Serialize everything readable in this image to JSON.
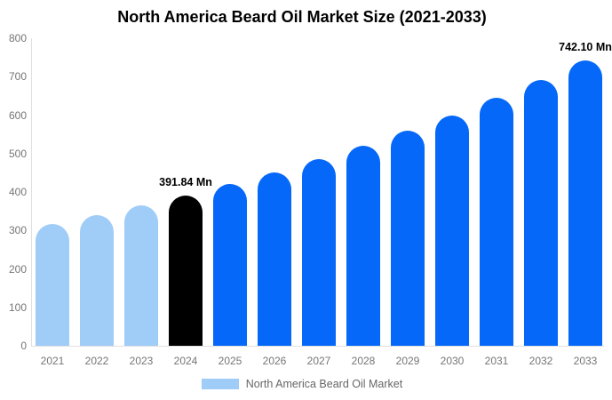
{
  "title": "North America Beard Oil Market Size (2021-2033)",
  "legend": {
    "label": "North America Beard Oil Market",
    "swatch_color": "#A0CCF8"
  },
  "colors": {
    "historical_bar": "#A0CCF8",
    "base_year_bar": "#000000",
    "forecast_bar": "#0568F8",
    "axis_line": "#E0E0E0",
    "tick_text": "#757575",
    "legend_text": "#666666",
    "data_label_text": "#000000",
    "title_text": "#000000",
    "background": "#FFFFFF"
  },
  "chart_data": {
    "type": "bar",
    "title": "North America Beard Oil Market Size (2021-2033)",
    "categories": [
      "2021",
      "2022",
      "2023",
      "2024",
      "2025",
      "2026",
      "2027",
      "2028",
      "2029",
      "2030",
      "2031",
      "2032",
      "2033"
    ],
    "values": [
      317,
      340,
      365,
      391.84,
      421,
      452,
      485,
      520,
      559,
      600,
      644,
      691,
      742.1
    ],
    "bar_roles": [
      "historical",
      "historical",
      "historical",
      "base_year",
      "forecast",
      "forecast",
      "forecast",
      "forecast",
      "forecast",
      "forecast",
      "forecast",
      "forecast",
      "forecast"
    ],
    "point_labels": [
      "",
      "",
      "",
      "391.84 Mn",
      "",
      "",
      "",
      "",
      "",
      "",
      "",
      "",
      "742.10 Mn"
    ],
    "xlabel": "",
    "ylabel": "",
    "ylim": [
      0,
      800
    ],
    "yticks": [
      0,
      100,
      200,
      300,
      400,
      500,
      600,
      700,
      800
    ],
    "grid": false,
    "legend_entries": [
      "North America Beard Oil Market"
    ],
    "legend_position": "bottom"
  }
}
